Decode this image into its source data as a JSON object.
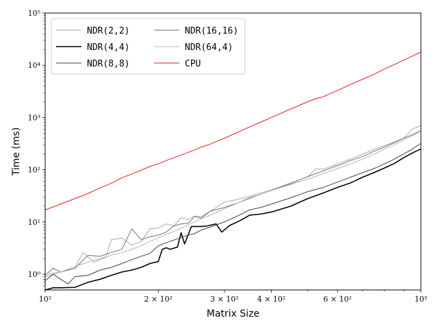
{
  "chart_data": {
    "type": "line",
    "title": "",
    "xlabel": "Matrix Size",
    "ylabel": "Time (ms)",
    "x_scale": "log",
    "y_scale": "log",
    "xlim": [
      100,
      1000
    ],
    "ylim": [
      0.5,
      100000
    ],
    "x_ticks": [
      {
        "value": 100,
        "label": "10²"
      },
      {
        "value": 200,
        "label": "2 × 10²"
      },
      {
        "value": 300,
        "label": "3 × 10²"
      },
      {
        "value": 400,
        "label": "4 × 10²"
      },
      {
        "value": 600,
        "label": "6 × 10²"
      },
      {
        "value": 1000,
        "label": "10³"
      }
    ],
    "y_ticks": [
      {
        "value": 1,
        "label": "10⁰"
      },
      {
        "value": 10,
        "label": "10¹"
      },
      {
        "value": 100,
        "label": "10²"
      },
      {
        "value": 1000,
        "label": "10³"
      },
      {
        "value": 10000,
        "label": "10⁴"
      },
      {
        "value": 100000,
        "label": "10⁵"
      }
    ],
    "grid": false,
    "legend_position": "top-left",
    "legend_columns": 2,
    "series": [
      {
        "name": "NDR(2,2)",
        "color": "#a8a8a8",
        "points": [
          [
            100,
            0.9
          ],
          [
            110,
            1.1
          ],
          [
            120,
            1.3
          ],
          [
            126,
            2.6
          ],
          [
            135,
            1.7
          ],
          [
            145,
            2.1
          ],
          [
            150,
            4.6
          ],
          [
            160,
            4.9
          ],
          [
            170,
            3.6
          ],
          [
            180,
            4.2
          ],
          [
            190,
            7.4
          ],
          [
            200,
            7.6
          ],
          [
            210,
            9.2
          ],
          [
            220,
            8.4
          ],
          [
            230,
            12.0
          ],
          [
            240,
            11.2
          ],
          [
            250,
            13.0
          ],
          [
            260,
            12.6
          ],
          [
            275,
            16.0
          ],
          [
            300,
            24.0
          ],
          [
            325,
            27.0
          ],
          [
            350,
            31.0
          ],
          [
            375,
            36.0
          ],
          [
            400,
            41.0
          ],
          [
            450,
            56.0
          ],
          [
            500,
            73.0
          ],
          [
            525,
            104.0
          ],
          [
            550,
            102.0
          ],
          [
            600,
            130.0
          ],
          [
            650,
            160.0
          ],
          [
            700,
            200.0
          ],
          [
            750,
            245.0
          ],
          [
            800,
            290.0
          ],
          [
            850,
            340.0
          ],
          [
            900,
            400.0
          ],
          [
            950,
            600.0
          ],
          [
            1000,
            700.0
          ]
        ]
      },
      {
        "name": "NDR(4,4)",
        "color": "#000000",
        "points": [
          [
            100,
            0.5
          ],
          [
            105,
            0.55
          ],
          [
            110,
            0.55
          ],
          [
            120,
            0.56
          ],
          [
            130,
            0.7
          ],
          [
            140,
            0.8
          ],
          [
            150,
            0.95
          ],
          [
            160,
            1.1
          ],
          [
            170,
            1.2
          ],
          [
            180,
            1.35
          ],
          [
            190,
            1.6
          ],
          [
            200,
            1.75
          ],
          [
            205,
            3.0
          ],
          [
            210,
            3.2
          ],
          [
            215,
            3.0
          ],
          [
            225,
            3.3
          ],
          [
            230,
            6.2
          ],
          [
            235,
            3.8
          ],
          [
            245,
            8.2
          ],
          [
            260,
            8.2
          ],
          [
            270,
            8.4
          ],
          [
            285,
            9.2
          ],
          [
            295,
            6.4
          ],
          [
            310,
            8.6
          ],
          [
            330,
            10.6
          ],
          [
            350,
            13.5
          ],
          [
            375,
            14.2
          ],
          [
            400,
            15.5
          ],
          [
            450,
            20.0
          ],
          [
            500,
            28.0
          ],
          [
            550,
            36.0
          ],
          [
            600,
            46.0
          ],
          [
            650,
            56.0
          ],
          [
            700,
            72.0
          ],
          [
            750,
            88.0
          ],
          [
            800,
            108.0
          ],
          [
            850,
            132.0
          ],
          [
            900,
            170.0
          ],
          [
            950,
            210.0
          ],
          [
            1000,
            250.0
          ]
        ]
      },
      {
        "name": "NDR(8,8)",
        "color": "#404040",
        "points": [
          [
            100,
            0.75
          ],
          [
            105,
            1.0
          ],
          [
            110,
            0.8
          ],
          [
            115,
            0.65
          ],
          [
            120,
            0.9
          ],
          [
            130,
            0.95
          ],
          [
            140,
            1.2
          ],
          [
            150,
            1.35
          ],
          [
            160,
            1.6
          ],
          [
            170,
            1.9
          ],
          [
            180,
            2.2
          ],
          [
            190,
            2.5
          ],
          [
            200,
            3.5
          ],
          [
            210,
            4.0
          ],
          [
            220,
            4.5
          ],
          [
            230,
            5.0
          ],
          [
            240,
            5.6
          ],
          [
            250,
            6.0
          ],
          [
            260,
            7.0
          ],
          [
            275,
            8.0
          ],
          [
            300,
            10.0
          ],
          [
            325,
            13.0
          ],
          [
            350,
            17.0
          ],
          [
            375,
            19.0
          ],
          [
            400,
            22.0
          ],
          [
            450,
            29.0
          ],
          [
            500,
            38.0
          ],
          [
            550,
            46.0
          ],
          [
            600,
            58.0
          ],
          [
            650,
            72.0
          ],
          [
            700,
            88.0
          ],
          [
            750,
            105.0
          ],
          [
            800,
            130.0
          ],
          [
            850,
            160.0
          ],
          [
            900,
            200.0
          ],
          [
            950,
            250.0
          ],
          [
            1000,
            320.0
          ]
        ]
      },
      {
        "name": "NDR(16,16)",
        "color": "#6e6e6e",
        "points": [
          [
            100,
            0.95
          ],
          [
            105,
            1.3
          ],
          [
            110,
            1.1
          ],
          [
            120,
            1.3
          ],
          [
            130,
            2.3
          ],
          [
            140,
            2.2
          ],
          [
            150,
            2.6
          ],
          [
            160,
            3.0
          ],
          [
            170,
            7.4
          ],
          [
            180,
            4.6
          ],
          [
            190,
            5.2
          ],
          [
            200,
            5.6
          ],
          [
            210,
            6.4
          ],
          [
            220,
            8.4
          ],
          [
            230,
            9.2
          ],
          [
            240,
            9.4
          ],
          [
            250,
            12.8
          ],
          [
            260,
            11.8
          ],
          [
            275,
            16.0
          ],
          [
            300,
            19.0
          ],
          [
            325,
            23.0
          ],
          [
            350,
            29.0
          ],
          [
            375,
            34.0
          ],
          [
            400,
            40.0
          ],
          [
            450,
            54.0
          ],
          [
            500,
            74.0
          ],
          [
            550,
            95.0
          ],
          [
            600,
            120.0
          ],
          [
            650,
            150.0
          ],
          [
            700,
            180.0
          ],
          [
            750,
            225.0
          ],
          [
            800,
            270.0
          ],
          [
            850,
            330.0
          ],
          [
            900,
            400.0
          ],
          [
            950,
            470.0
          ],
          [
            1000,
            560.0
          ]
        ]
      },
      {
        "name": "NDR(64,4)",
        "color": "#b4b4b4",
        "points": [
          [
            100,
            1.0
          ],
          [
            110,
            1.1
          ],
          [
            120,
            1.4
          ],
          [
            130,
            1.7
          ],
          [
            140,
            2.0
          ],
          [
            150,
            2.3
          ],
          [
            160,
            2.6
          ],
          [
            170,
            3.0
          ],
          [
            180,
            3.5
          ],
          [
            190,
            4.2
          ],
          [
            200,
            5.0
          ],
          [
            210,
            5.8
          ],
          [
            220,
            6.6
          ],
          [
            230,
            7.6
          ],
          [
            240,
            8.8
          ],
          [
            250,
            10.0
          ],
          [
            260,
            11.5
          ],
          [
            275,
            13.5
          ],
          [
            300,
            18.0
          ],
          [
            325,
            23.0
          ],
          [
            350,
            28.0
          ],
          [
            375,
            34.0
          ],
          [
            400,
            40.0
          ],
          [
            450,
            52.0
          ],
          [
            500,
            66.0
          ],
          [
            550,
            84.0
          ],
          [
            600,
            105.0
          ],
          [
            650,
            130.0
          ],
          [
            700,
            160.0
          ],
          [
            750,
            200.0
          ],
          [
            800,
            245.0
          ],
          [
            850,
            300.0
          ],
          [
            900,
            370.0
          ],
          [
            950,
            450.0
          ],
          [
            1000,
            550.0
          ]
        ]
      },
      {
        "name": "CPU",
        "color": "#e31a1c",
        "points": [
          [
            100,
            17.0
          ],
          [
            110,
            22.0
          ],
          [
            120,
            28.0
          ],
          [
            130,
            35.0
          ],
          [
            140,
            45.0
          ],
          [
            150,
            55.0
          ],
          [
            160,
            70.0
          ],
          [
            170,
            83.0
          ],
          [
            180,
            98.0
          ],
          [
            190,
            115.0
          ],
          [
            200,
            130.0
          ],
          [
            210,
            150.0
          ],
          [
            220,
            170.0
          ],
          [
            230,
            192.0
          ],
          [
            240,
            215.0
          ],
          [
            250,
            240.0
          ],
          [
            260,
            270.0
          ],
          [
            275,
            310.0
          ],
          [
            300,
            400.0
          ],
          [
            325,
            520.0
          ],
          [
            350,
            660.0
          ],
          [
            375,
            820.0
          ],
          [
            400,
            1000.0
          ],
          [
            450,
            1450.0
          ],
          [
            500,
            2000.0
          ],
          [
            525,
            2300.0
          ],
          [
            550,
            2500.0
          ],
          [
            600,
            3300.0
          ],
          [
            650,
            4300.0
          ],
          [
            700,
            5400.0
          ],
          [
            750,
            6700.0
          ],
          [
            800,
            8500.0
          ],
          [
            850,
            10300.0
          ],
          [
            900,
            12600.0
          ],
          [
            950,
            15000.0
          ],
          [
            1000,
            18000.0
          ]
        ]
      }
    ]
  }
}
